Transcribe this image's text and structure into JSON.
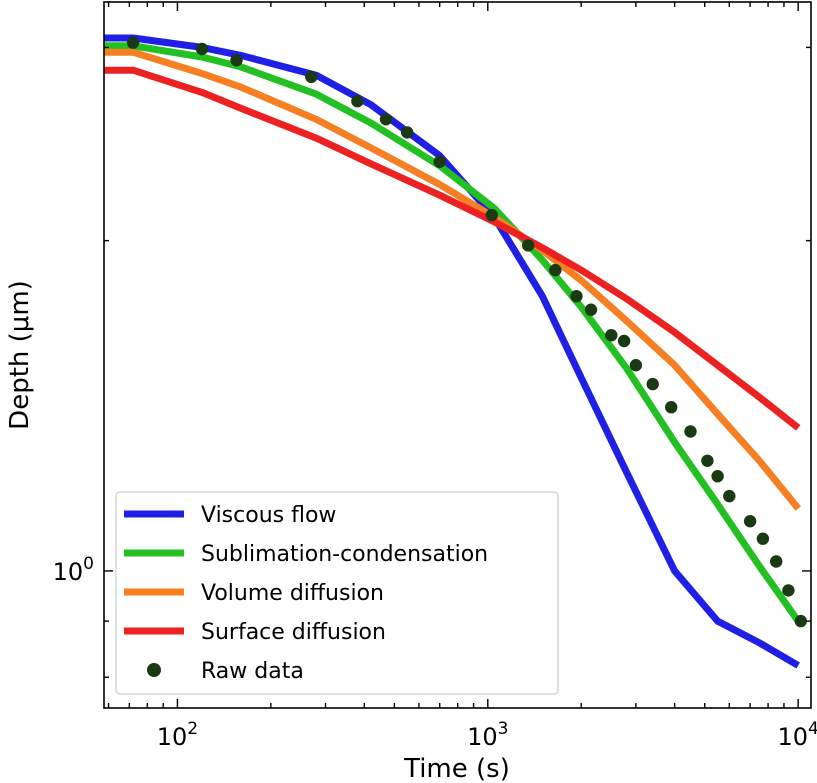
{
  "chart_data": {
    "type": "line",
    "scale": {
      "x": "log",
      "y": "log"
    },
    "xlabel": "Time (s)",
    "ylabel": "Depth (μm)",
    "xlim": [
      58,
      11000
    ],
    "ylim": [
      0.75,
      3.3
    ],
    "x_ticks": [
      {
        "value": 100,
        "base": "10",
        "exp": "2"
      },
      {
        "value": 1000,
        "base": "10",
        "exp": "3"
      },
      {
        "value": 10000,
        "base": "10",
        "exp": "4"
      }
    ],
    "y_ticks": [
      {
        "value": 1,
        "base": "10",
        "exp": "0"
      }
    ],
    "legend_position": "lower-left",
    "series": [
      {
        "name": "Viscous flow",
        "color": "#1f1fe6",
        "x": [
          58,
          72,
          120,
          160,
          280,
          420,
          700,
          1050,
          1500,
          2000,
          2800,
          4000,
          5500,
          7500,
          10000
        ],
        "y": [
          3.06,
          3.06,
          3.0,
          2.95,
          2.83,
          2.66,
          2.39,
          2.1,
          1.78,
          1.5,
          1.23,
          1.0,
          0.9,
          0.86,
          0.82
        ]
      },
      {
        "name": "Sublimation-condensation",
        "color": "#22c022",
        "x": [
          58,
          72,
          120,
          160,
          280,
          420,
          700,
          1050,
          1500,
          2000,
          2800,
          4000,
          5500,
          7500,
          10000
        ],
        "y": [
          3.01,
          3.01,
          2.94,
          2.88,
          2.72,
          2.56,
          2.34,
          2.14,
          1.92,
          1.74,
          1.53,
          1.31,
          1.15,
          1.01,
          0.9
        ]
      },
      {
        "name": "Volume diffusion",
        "color": "#f57f22",
        "x": [
          58,
          72,
          120,
          160,
          280,
          420,
          700,
          1050,
          1500,
          2000,
          2800,
          4000,
          5500,
          7500,
          10000
        ],
        "y": [
          2.97,
          2.97,
          2.84,
          2.76,
          2.58,
          2.43,
          2.25,
          2.1,
          1.96,
          1.84,
          1.69,
          1.54,
          1.39,
          1.26,
          1.14
        ]
      },
      {
        "name": "Surface diffusion",
        "color": "#ec2222",
        "x": [
          58,
          72,
          120,
          160,
          280,
          420,
          700,
          1050,
          1500,
          2000,
          2800,
          4000,
          5500,
          7500,
          10000
        ],
        "y": [
          2.86,
          2.86,
          2.73,
          2.64,
          2.48,
          2.35,
          2.2,
          2.08,
          1.97,
          1.88,
          1.77,
          1.65,
          1.54,
          1.44,
          1.35
        ]
      }
    ],
    "scatter": {
      "name": "Raw data",
      "color": "#1a3a14",
      "x": [
        72,
        120,
        155,
        270,
        380,
        470,
        550,
        700,
        1030,
        1350,
        1650,
        1930,
        2150,
        2500,
        2750,
        3000,
        3400,
        3900,
        4500,
        5100,
        5500,
        6000,
        7000,
        7700,
        8500,
        9300,
        10200
      ],
      "y": [
        3.03,
        2.99,
        2.92,
        2.82,
        2.68,
        2.58,
        2.51,
        2.36,
        2.11,
        1.98,
        1.88,
        1.78,
        1.73,
        1.64,
        1.62,
        1.54,
        1.48,
        1.41,
        1.34,
        1.26,
        1.22,
        1.17,
        1.11,
        1.07,
        1.02,
        0.96,
        0.9
      ]
    }
  }
}
